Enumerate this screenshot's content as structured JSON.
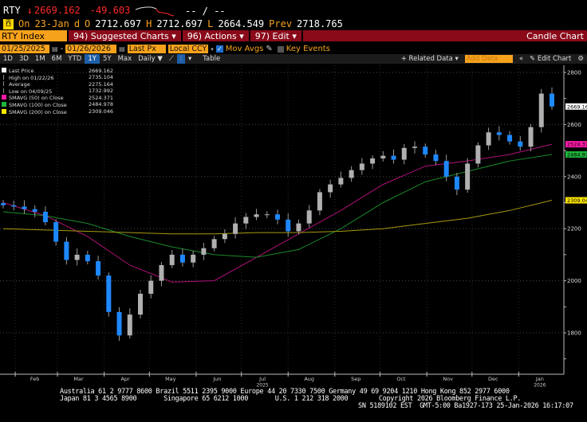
{
  "header": {
    "ticker": "RTY",
    "arrow": "↓",
    "last": "2669.162",
    "change": "-49.603",
    "bidask": "-- / --",
    "on_label": "On",
    "date": "23-Jan",
    "d": "d",
    "o_label": "O",
    "open": "2712.697",
    "h_label": "H",
    "high": "2712.697",
    "l_label": "L",
    "low": "2664.549",
    "prev_label": "Prev",
    "prev": "2718.765"
  },
  "menubar": {
    "security": "RTY Index",
    "suggested": "94) Suggested Charts ▾",
    "actions": "96) Actions ▾",
    "edit": "97) Edit ▾",
    "title": "Candle Chart"
  },
  "controls": {
    "start": "01/25/2025",
    "end": "01/26/2026",
    "field": "Last Px",
    "currency": "Local CCY",
    "mov_avgs": "Mov Avgs",
    "key_events": "Key Events"
  },
  "toolbar": {
    "periods": [
      "1D",
      "3D",
      "1M",
      "6M",
      "YTD",
      "1Y",
      "5Y",
      "Max"
    ],
    "selected": "1Y",
    "freq": "Daily ▼",
    "table": "Table",
    "related": "+ Related Data ▾",
    "add_placeholder": "Add Data",
    "edit_chart": "Edit Chart"
  },
  "legend": [
    {
      "label": "Last Price",
      "value": "2669.162",
      "color": "#ffffff"
    },
    {
      "label": "High on 01/22/26",
      "value": "2735.104",
      "color": ""
    },
    {
      "label": "Average",
      "value": "2275.164",
      "color": ""
    },
    {
      "label": "Low on 04/09/25",
      "value": "1732.992",
      "color": ""
    },
    {
      "label": "SMAVG (50)  on Close",
      "value": "2524.371",
      "color": "#ff1aa8"
    },
    {
      "label": "SMAVG (100)  on Close",
      "value": "2484.978",
      "color": "#1fb53a"
    },
    {
      "label": "SMAVG (200)  on Close",
      "value": "2309.046",
      "color": "#ffe600"
    }
  ],
  "footer": {
    "line1": "Australia 61 2 9777 8600 Brazil 5511 2395 9000 Europe 44 20 7330 7500 Germany 49 69 9204 1210 Hong Kong 852 2977 6000",
    "line2": "Japan 81 3 4565 8900       Singapore 65 6212 1000       U.S. 1 212 318 2000        Copyright 2026 Bloomberg Finance L.P.",
    "line3": "SN 5189102 EST  GMT-5:00 Ba1927-173 25-Jan-2026 16:17:07"
  },
  "chart_data": {
    "type": "candlestick",
    "up_color": "#b0b0b0",
    "down_color": "#1e88ff",
    "ylim": [
      1650,
      2850
    ],
    "yticks": [
      1800,
      2000,
      2200,
      2400,
      2600,
      2800
    ],
    "xlim": [
      "2025-01-24",
      "2026-01-30"
    ],
    "month_labels": [
      [
        "Feb",
        "2025-02-14"
      ],
      [
        "Mar",
        "2025-03-15"
      ],
      [
        "Apr",
        "2025-04-15"
      ],
      [
        "May",
        "2025-05-15"
      ],
      [
        "Jun",
        "2025-06-15"
      ],
      [
        "Jul",
        "2025-07-15"
      ],
      [
        "Aug",
        "2025-08-15"
      ],
      [
        "Sep",
        "2025-09-15"
      ],
      [
        "Oct",
        "2025-10-15"
      ],
      [
        "Nov",
        "2025-11-15"
      ],
      [
        "Dec",
        "2025-12-15"
      ],
      [
        "Jan",
        "2026-01-15"
      ]
    ],
    "year_labels": [
      [
        "2025",
        "2025-07-15"
      ],
      [
        "2026",
        "2026-01-15"
      ]
    ],
    "grid": true,
    "close": [
      [
        "2025-01-24",
        2290
      ],
      [
        "2025-01-31",
        2285
      ],
      [
        "2025-02-07",
        2275
      ],
      [
        "2025-02-14",
        2265
      ],
      [
        "2025-02-21",
        2225
      ],
      [
        "2025-02-28",
        2150
      ],
      [
        "2025-03-07",
        2080
      ],
      [
        "2025-03-14",
        2100
      ],
      [
        "2025-03-21",
        2075
      ],
      [
        "2025-03-28",
        2020
      ],
      [
        "2025-04-04",
        1880
      ],
      [
        "2025-04-11",
        1790
      ],
      [
        "2025-04-18",
        1870
      ],
      [
        "2025-04-25",
        1950
      ],
      [
        "2025-05-02",
        2000
      ],
      [
        "2025-05-09",
        2060
      ],
      [
        "2025-05-16",
        2100
      ],
      [
        "2025-05-23",
        2070
      ],
      [
        "2025-05-30",
        2100
      ],
      [
        "2025-06-06",
        2125
      ],
      [
        "2025-06-13",
        2160
      ],
      [
        "2025-06-20",
        2180
      ],
      [
        "2025-06-27",
        2220
      ],
      [
        "2025-07-04",
        2245
      ],
      [
        "2025-07-11",
        2255
      ],
      [
        "2025-07-18",
        2255
      ],
      [
        "2025-07-25",
        2235
      ],
      [
        "2025-08-01",
        2190
      ],
      [
        "2025-08-08",
        2220
      ],
      [
        "2025-08-15",
        2270
      ],
      [
        "2025-08-22",
        2340
      ],
      [
        "2025-08-29",
        2370
      ],
      [
        "2025-09-05",
        2395
      ],
      [
        "2025-09-12",
        2425
      ],
      [
        "2025-09-19",
        2450
      ],
      [
        "2025-09-26",
        2470
      ],
      [
        "2025-10-03",
        2480
      ],
      [
        "2025-10-10",
        2465
      ],
      [
        "2025-10-17",
        2510
      ],
      [
        "2025-10-24",
        2515
      ],
      [
        "2025-10-31",
        2485
      ],
      [
        "2025-11-07",
        2460
      ],
      [
        "2025-11-14",
        2400
      ],
      [
        "2025-11-21",
        2350
      ],
      [
        "2025-11-28",
        2450
      ],
      [
        "2025-12-05",
        2520
      ],
      [
        "2025-12-12",
        2570
      ],
      [
        "2025-12-19",
        2560
      ],
      [
        "2025-12-26",
        2535
      ],
      [
        "2026-01-02",
        2515
      ],
      [
        "2026-01-09",
        2590
      ],
      [
        "2026-01-16",
        2718.765
      ],
      [
        "2026-01-23",
        2669.162
      ]
    ],
    "moving_averages": [
      {
        "name": "SMAVG (50)",
        "color": "#b0127a",
        "label_color": "#ff1aa8",
        "last": "2524.371",
        "values": [
          [
            "2025-01-24",
            2300
          ],
          [
            "2025-02-21",
            2250
          ],
          [
            "2025-03-21",
            2170
          ],
          [
            "2025-04-18",
            2060
          ],
          [
            "2025-05-16",
            1995
          ],
          [
            "2025-06-13",
            2000
          ],
          [
            "2025-07-11",
            2090
          ],
          [
            "2025-08-08",
            2180
          ],
          [
            "2025-09-05",
            2270
          ],
          [
            "2025-10-03",
            2370
          ],
          [
            "2025-10-31",
            2440
          ],
          [
            "2025-11-28",
            2460
          ],
          [
            "2025-12-26",
            2485
          ],
          [
            "2026-01-23",
            2524.371
          ]
        ]
      },
      {
        "name": "SMAVG (100)",
        "color": "#198a2a",
        "label_color": "#1fb53a",
        "last": "2484.978",
        "values": [
          [
            "2025-01-24",
            2265
          ],
          [
            "2025-02-21",
            2250
          ],
          [
            "2025-03-21",
            2220
          ],
          [
            "2025-04-18",
            2170
          ],
          [
            "2025-05-16",
            2130
          ],
          [
            "2025-06-13",
            2100
          ],
          [
            "2025-07-11",
            2090
          ],
          [
            "2025-08-08",
            2120
          ],
          [
            "2025-09-05",
            2200
          ],
          [
            "2025-10-03",
            2300
          ],
          [
            "2025-10-31",
            2380
          ],
          [
            "2025-11-28",
            2420
          ],
          [
            "2025-12-26",
            2460
          ],
          [
            "2026-01-23",
            2484.978
          ]
        ]
      },
      {
        "name": "SMAVG (200)",
        "color": "#a89a10",
        "label_color": "#ffe600",
        "last": "2309.046",
        "values": [
          [
            "2025-01-24",
            2200
          ],
          [
            "2025-02-21",
            2195
          ],
          [
            "2025-03-21",
            2190
          ],
          [
            "2025-04-18",
            2185
          ],
          [
            "2025-05-16",
            2180
          ],
          [
            "2025-06-13",
            2180
          ],
          [
            "2025-07-11",
            2185
          ],
          [
            "2025-08-08",
            2185
          ],
          [
            "2025-09-05",
            2190
          ],
          [
            "2025-10-03",
            2200
          ],
          [
            "2025-10-31",
            2220
          ],
          [
            "2025-11-28",
            2240
          ],
          [
            "2025-12-26",
            2270
          ],
          [
            "2026-01-23",
            2309.046
          ]
        ]
      }
    ],
    "last_label": "2669.162"
  }
}
